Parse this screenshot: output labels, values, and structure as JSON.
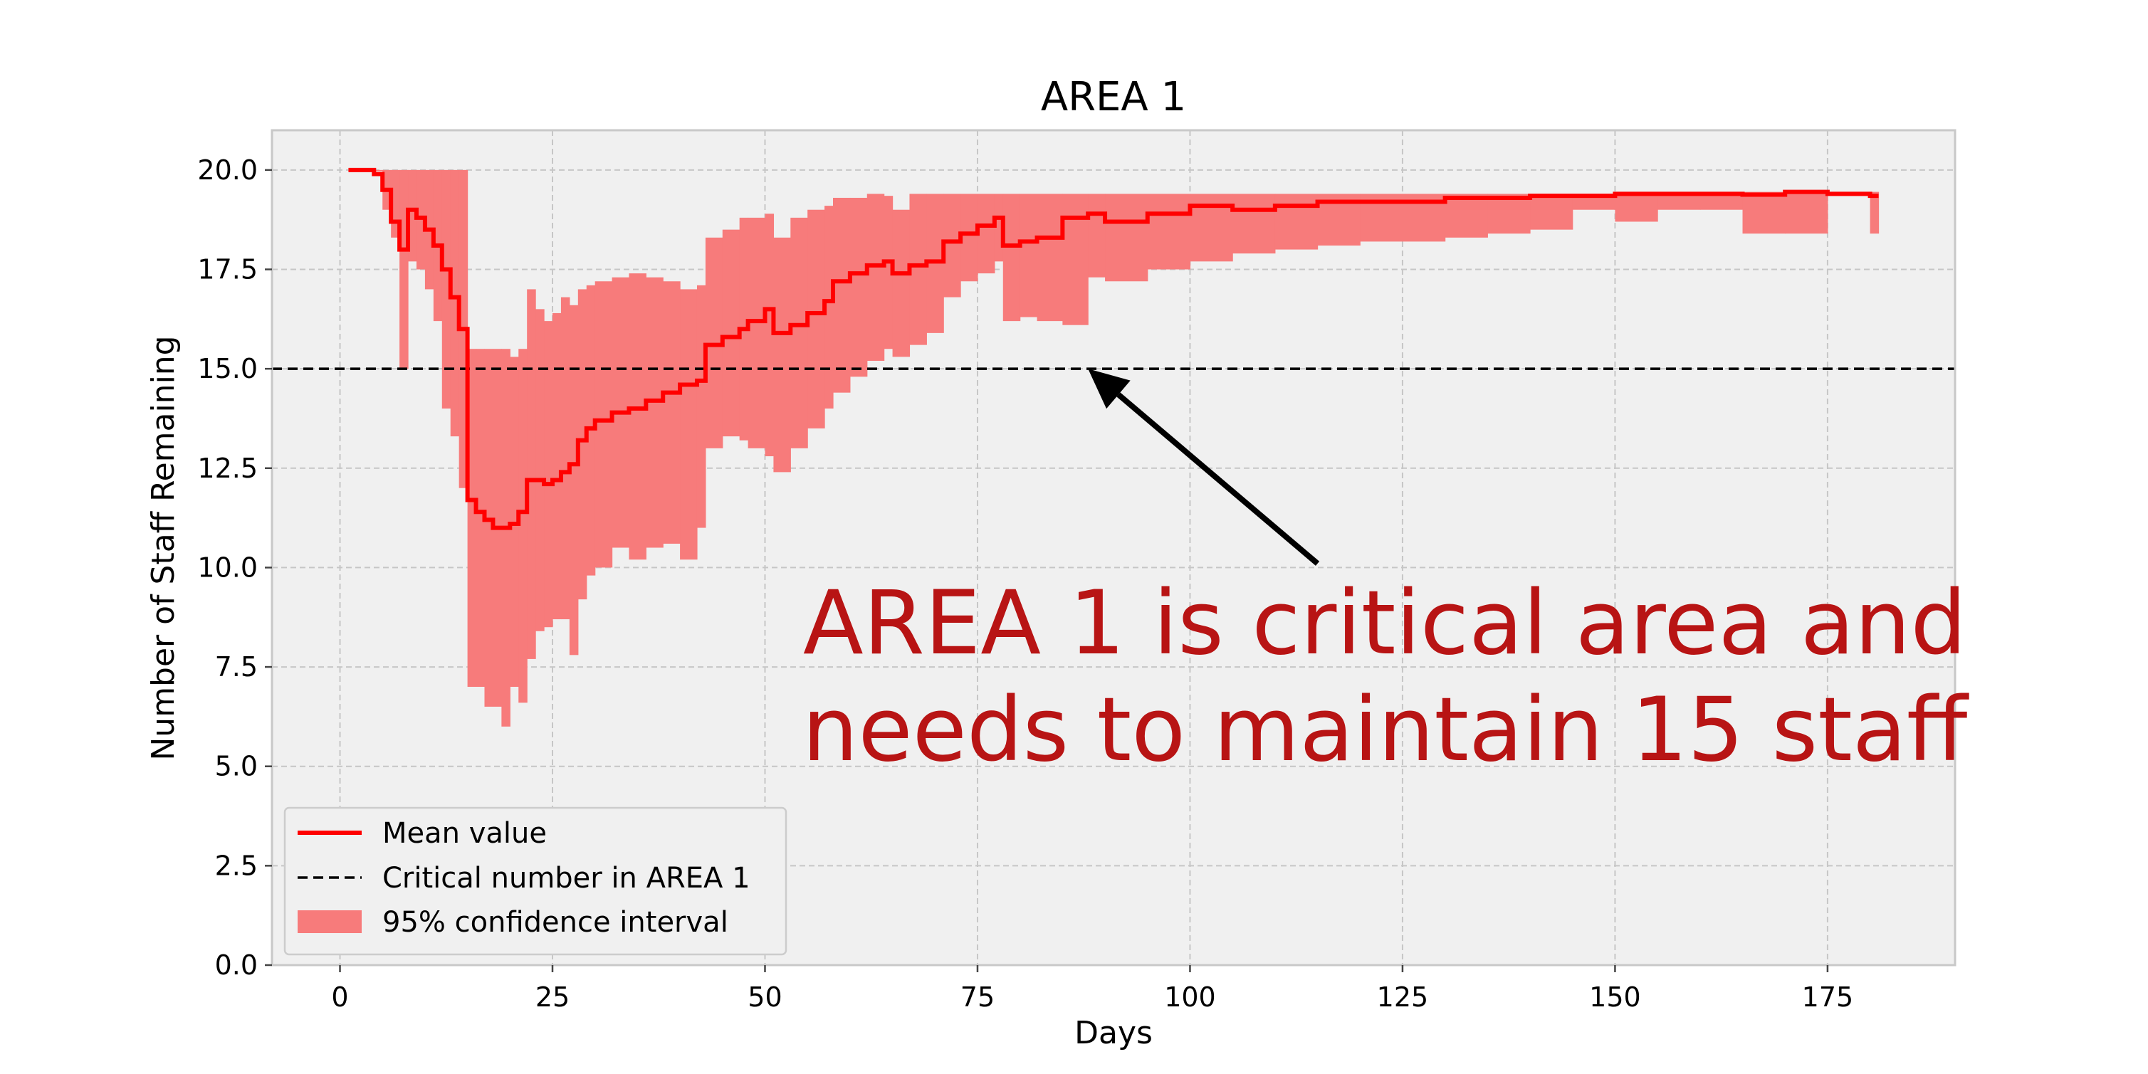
{
  "chart_data": {
    "type": "line",
    "title": "AREA 1",
    "xlabel": "Days",
    "ylabel": "Number of Staff Remaining",
    "xlim": [
      -8,
      190
    ],
    "ylim": [
      0,
      21
    ],
    "xticks": [
      0,
      25,
      50,
      75,
      100,
      125,
      150,
      175
    ],
    "xtick_labels": [
      "0",
      "25",
      "50",
      "75",
      "100",
      "125",
      "150",
      "175"
    ],
    "yticks": [
      0,
      2.5,
      5,
      7.5,
      10,
      12.5,
      15,
      17.5,
      20
    ],
    "ytick_labels": [
      "0.0",
      "2.5",
      "5.0",
      "7.5",
      "10.0",
      "12.5",
      "15.0",
      "17.5",
      "20.0"
    ],
    "grid": true,
    "legend_position": "lower-left",
    "legend": [
      "Mean value",
      "Critical number in AREA 1",
      "95% confidence interval"
    ],
    "colors": {
      "mean": "#ff0000",
      "ci": "#f77b7b",
      "critical": "#000000",
      "plot_bg": "#f0f0f0",
      "annotation": "#b81414"
    },
    "critical_value": 15,
    "mean": {
      "name": "Mean value",
      "x": [
        1,
        3,
        4,
        5,
        6,
        7,
        8,
        9,
        10,
        11,
        12,
        13,
        14,
        15,
        16,
        17,
        18,
        19,
        20,
        21,
        22,
        23,
        24,
        25,
        26,
        27,
        28,
        29,
        30,
        32,
        34,
        36,
        38,
        40,
        42,
        43,
        45,
        47,
        48,
        50,
        51,
        53,
        55,
        57,
        58,
        60,
        62,
        64,
        65,
        67,
        69,
        71,
        73,
        75,
        77,
        78,
        80,
        82,
        85,
        88,
        90,
        95,
        100,
        105,
        110,
        115,
        120,
        125,
        130,
        135,
        140,
        145,
        150,
        155,
        160,
        165,
        170,
        175,
        180,
        181
      ],
      "y": [
        20,
        20,
        19.9,
        19.5,
        18.7,
        18,
        19,
        18.8,
        18.5,
        18.1,
        17.5,
        16.8,
        16,
        11.7,
        11.4,
        11.2,
        11.0,
        11.0,
        11.1,
        11.4,
        12.2,
        12.2,
        12.1,
        12.2,
        12.4,
        12.6,
        13.2,
        13.5,
        13.7,
        13.9,
        14.0,
        14.2,
        14.4,
        14.6,
        14.7,
        15.6,
        15.8,
        16.0,
        16.2,
        16.5,
        15.9,
        16.1,
        16.4,
        16.7,
        17.2,
        17.4,
        17.6,
        17.7,
        17.4,
        17.6,
        17.7,
        18.2,
        18.4,
        18.6,
        18.8,
        18.1,
        18.2,
        18.3,
        18.8,
        18.9,
        18.7,
        18.9,
        19.1,
        19.0,
        19.1,
        19.2,
        19.2,
        19.2,
        19.3,
        19.3,
        19.35,
        19.35,
        19.4,
        19.4,
        19.4,
        19.38,
        19.45,
        19.4,
        19.35,
        19.35
      ]
    },
    "ci": {
      "name": "95% confidence interval",
      "x": [
        1,
        3,
        4,
        5,
        6,
        7,
        8,
        9,
        10,
        11,
        12,
        13,
        14,
        15,
        16,
        17,
        18,
        19,
        20,
        21,
        22,
        23,
        24,
        25,
        26,
        27,
        28,
        29,
        30,
        32,
        34,
        36,
        38,
        40,
        42,
        43,
        45,
        47,
        48,
        50,
        51,
        53,
        55,
        57,
        58,
        60,
        62,
        64,
        65,
        67,
        69,
        71,
        73,
        75,
        77,
        78,
        80,
        82,
        85,
        88,
        90,
        95,
        100,
        105,
        110,
        115,
        120,
        125,
        130,
        135,
        140,
        145,
        150,
        155,
        160,
        165,
        170,
        175,
        180,
        181
      ],
      "lower": [
        20,
        20,
        20,
        19,
        18.3,
        15,
        17.7,
        17.5,
        17,
        16.2,
        14,
        13.3,
        12,
        7,
        7,
        6.5,
        6.5,
        6,
        7,
        6.6,
        7.7,
        8.4,
        8.5,
        8.7,
        8.7,
        7.8,
        9.2,
        9.8,
        10,
        10.5,
        10.2,
        10.5,
        10.6,
        10.2,
        11,
        13,
        13.3,
        13.2,
        13,
        12.8,
        12.4,
        13,
        13.5,
        14,
        14.4,
        14.8,
        15.2,
        15.5,
        15.3,
        15.6,
        15.9,
        16.8,
        17.2,
        17.4,
        17.7,
        16.2,
        16.3,
        16.2,
        16.1,
        17.3,
        17.2,
        17.5,
        17.7,
        17.9,
        18,
        18.1,
        18.2,
        18.2,
        18.3,
        18.4,
        18.5,
        19,
        18.7,
        19,
        19,
        18.4,
        18.4,
        19.4,
        18.4,
        18.4
      ],
      "upper": [
        20,
        20,
        20,
        20,
        20,
        20,
        20,
        20,
        20,
        20,
        20,
        20,
        20,
        15.5,
        15.5,
        15.5,
        15.5,
        15.5,
        15.3,
        15.5,
        17,
        16.5,
        16.2,
        16.4,
        16.8,
        16.6,
        17,
        17.1,
        17.2,
        17.3,
        17.4,
        17.3,
        17.2,
        17.0,
        17.1,
        18.3,
        18.5,
        18.8,
        18.8,
        18.9,
        18.3,
        18.8,
        19.0,
        19.1,
        19.3,
        19.3,
        19.4,
        19.35,
        19.0,
        19.4,
        19.4,
        19.4,
        19.4,
        19.4,
        19.4,
        19.4,
        19.4,
        19.4,
        19.4,
        19.4,
        19.4,
        19.4,
        19.4,
        19.4,
        19.4,
        19.4,
        19.4,
        19.4,
        19.4,
        19.4,
        19.4,
        19.4,
        19.4,
        19.4,
        19.45,
        19.45,
        19.45,
        19.45,
        19.45,
        19.45
      ]
    },
    "annotation": {
      "text_lines": [
        "AREA 1 is critical area and",
        "needs to maintain 15 staff"
      ],
      "arrow_target": [
        88,
        15
      ],
      "arrow_tail": [
        115,
        10.1
      ]
    }
  }
}
